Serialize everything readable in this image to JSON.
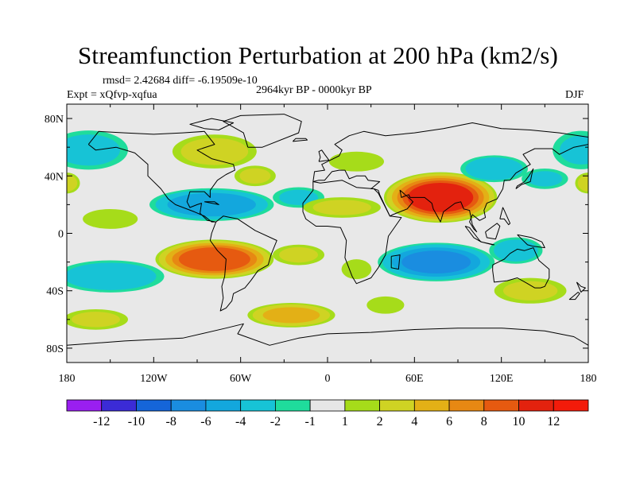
{
  "title": "Streamfunction Perturbation at 200 hPa (km2/s)",
  "stats": "rmsd= 2.42684 diff= -6.19509e-10",
  "experiment": "Expt = xQfvp-xqfua",
  "period": "2964kyr BP - 0000kyr BP",
  "season": "DJF",
  "map": {
    "projection": "cylindrical equidistant",
    "lon_range": [
      -180,
      180
    ],
    "lat_range": [
      -90,
      90
    ],
    "x_tick_labels": [
      "180",
      "120W",
      "60W",
      "0",
      "60E",
      "120E",
      "180"
    ],
    "x_tick_values": [
      -180,
      -120,
      -60,
      0,
      60,
      120,
      180
    ],
    "y_tick_labels": [
      "80N",
      "40N",
      "0",
      "40S",
      "80S"
    ],
    "y_tick_values": [
      80,
      40,
      0,
      -40,
      -80
    ],
    "coastlines": true,
    "neutral_fill": "#e8e8e8"
  },
  "colorbar": {
    "labels": [
      "-12",
      "-10",
      "-8",
      "-6",
      "-4",
      "-2",
      "-1",
      "1",
      "2",
      "4",
      "6",
      "8",
      "10",
      "12"
    ],
    "colors": [
      "#9a1ff0",
      "#3b2bd6",
      "#1565d9",
      "#1a8de0",
      "#13a7dd",
      "#17c3d6",
      "#1fdc9c",
      "#e6e6e6",
      "#a6dc1a",
      "#cfd323",
      "#e3b016",
      "#e78813",
      "#e65a10",
      "#e3220e",
      "#f31b0a"
    ]
  },
  "chart_data": {
    "type": "heatmap",
    "variable": "Streamfunction Perturbation at 200 hPa",
    "units": "km2/s",
    "levels": [
      -12,
      -10,
      -8,
      -6,
      -4,
      -2,
      -1,
      1,
      2,
      4,
      6,
      8,
      10,
      12
    ],
    "features": [
      {
        "lon": -78,
        "lat": 57,
        "value": 2.5,
        "rlon": 32,
        "rlat": 13
      },
      {
        "lon": -50,
        "lat": 40,
        "value": 2,
        "rlon": 16,
        "rlat": 8
      },
      {
        "lon": -165,
        "lat": 58,
        "value": -2.5,
        "rlon": 30,
        "rlat": 15
      },
      {
        "lon": 175,
        "lat": 58,
        "value": -2,
        "rlon": 22,
        "rlat": 15
      },
      {
        "lon": -180,
        "lat": 35,
        "value": 2.5,
        "rlon": 10,
        "rlat": 8
      },
      {
        "lon": 180,
        "lat": 35,
        "value": 2.5,
        "rlon": 10,
        "rlat": 8
      },
      {
        "lon": -80,
        "lat": 20,
        "value": -5.5,
        "rlon": 45,
        "rlat": 12
      },
      {
        "lon": -20,
        "lat": 25,
        "value": -2,
        "rlon": 20,
        "rlat": 8
      },
      {
        "lon": 10,
        "lat": 18,
        "value": 2,
        "rlon": 30,
        "rlat": 8
      },
      {
        "lon": 78,
        "lat": 25,
        "value": 11.5,
        "rlon": 40,
        "rlat": 18
      },
      {
        "lon": 20,
        "lat": 50,
        "value": 1.5,
        "rlon": 22,
        "rlat": 8
      },
      {
        "lon": 115,
        "lat": 45,
        "value": -3.5,
        "rlon": 25,
        "rlat": 10
      },
      {
        "lon": 150,
        "lat": 38,
        "value": -2,
        "rlon": 18,
        "rlat": 8
      },
      {
        "lon": -150,
        "lat": 10,
        "value": 1.5,
        "rlon": 22,
        "rlat": 8
      },
      {
        "lon": -78,
        "lat": -18,
        "value": 9.5,
        "rlon": 42,
        "rlat": 14
      },
      {
        "lon": -150,
        "lat": -30,
        "value": -3.5,
        "rlon": 40,
        "rlat": 12
      },
      {
        "lon": -20,
        "lat": -15,
        "value": 2,
        "rlon": 20,
        "rlat": 8
      },
      {
        "lon": 20,
        "lat": -25,
        "value": 1.5,
        "rlon": 12,
        "rlat": 8
      },
      {
        "lon": 75,
        "lat": -20,
        "value": -6.5,
        "rlon": 42,
        "rlat": 14
      },
      {
        "lon": 130,
        "lat": -12,
        "value": -3,
        "rlon": 20,
        "rlat": 10
      },
      {
        "lon": 140,
        "lat": -40,
        "value": 2,
        "rlon": 28,
        "rlat": 10
      },
      {
        "lon": -25,
        "lat": -57,
        "value": 4.5,
        "rlon": 32,
        "rlat": 9
      },
      {
        "lon": 40,
        "lat": -50,
        "value": 1.5,
        "rlon": 15,
        "rlat": 7
      },
      {
        "lon": -160,
        "lat": -60,
        "value": 2,
        "rlon": 25,
        "rlat": 8
      }
    ]
  }
}
